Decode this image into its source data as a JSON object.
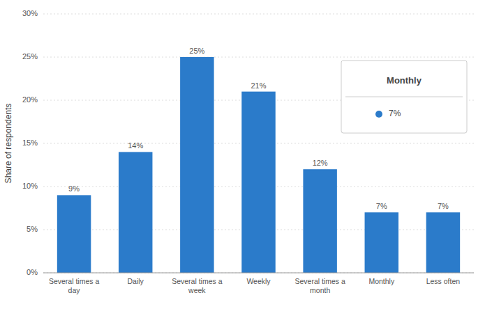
{
  "chart_data": {
    "type": "bar",
    "categories": [
      "Several times a\nday",
      "Daily",
      "Several times a\nweek",
      "Weekly",
      "Several times a\nmonth",
      "Monthly",
      "Less often"
    ],
    "values": [
      9,
      14,
      25,
      21,
      12,
      7,
      7
    ],
    "value_labels": [
      "9%",
      "14%",
      "25%",
      "21%",
      "12%",
      "7%",
      "7%"
    ],
    "data_labels": true,
    "color": "#2b7bca",
    "y_label": "Share of respondents",
    "ylim": [
      0,
      30
    ],
    "yticks": [
      {
        "value": 0,
        "label": "0%"
      },
      {
        "value": 5,
        "label": "5%"
      },
      {
        "value": 10,
        "label": "10%"
      },
      {
        "value": 15,
        "label": "15%"
      },
      {
        "value": 20,
        "label": "20%"
      },
      {
        "value": 25,
        "label": "25%"
      },
      {
        "value": 30,
        "label": "30%"
      }
    ],
    "grid": true,
    "annotations": [
      {
        "title": "Monthly",
        "value": 7,
        "label": "7%",
        "color": "#2b7bca"
      }
    ]
  }
}
